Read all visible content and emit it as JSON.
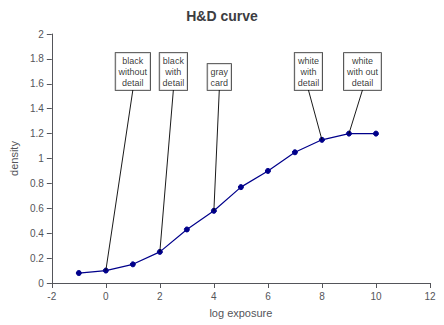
{
  "chart_data": {
    "type": "line",
    "title": "H&D curve",
    "xlabel": "log exposure",
    "ylabel": "density",
    "x": [
      -1,
      0,
      1,
      2,
      3,
      4,
      5,
      6,
      7,
      8,
      9,
      10
    ],
    "values": [
      0.08,
      0.1,
      0.15,
      0.25,
      0.43,
      0.58,
      0.77,
      0.9,
      1.05,
      1.15,
      1.2,
      1.2
    ],
    "color": "#00008B",
    "marker": "circle",
    "xlim": [
      -2,
      12
    ],
    "xticks": [
      -2,
      0,
      2,
      4,
      6,
      8,
      10,
      12
    ],
    "ylim": [
      0,
      2
    ],
    "yticks": [
      0,
      0.2,
      0.4,
      0.6,
      0.8,
      1,
      1.2,
      1.4,
      1.6,
      1.8,
      2
    ],
    "grid": false,
    "annotations": [
      {
        "text": "black\nwithout\ndetail",
        "x": 0,
        "y": 0.1,
        "text_x": 1.0,
        "text_y": 1.55
      },
      {
        "text": "black\nwith\ndetail",
        "x": 2,
        "y": 0.25,
        "text_x": 2.5,
        "text_y": 1.55
      },
      {
        "text": "gray\ncard",
        "x": 4,
        "y": 0.58,
        "text_x": 4.2,
        "text_y": 1.55
      },
      {
        "text": "white\nwith\ndetail",
        "x": 8,
        "y": 1.15,
        "text_x": 7.5,
        "text_y": 1.55
      },
      {
        "text": "white\nwith out\ndetail",
        "x": 9,
        "y": 1.2,
        "text_x": 9.5,
        "text_y": 1.55
      }
    ]
  }
}
